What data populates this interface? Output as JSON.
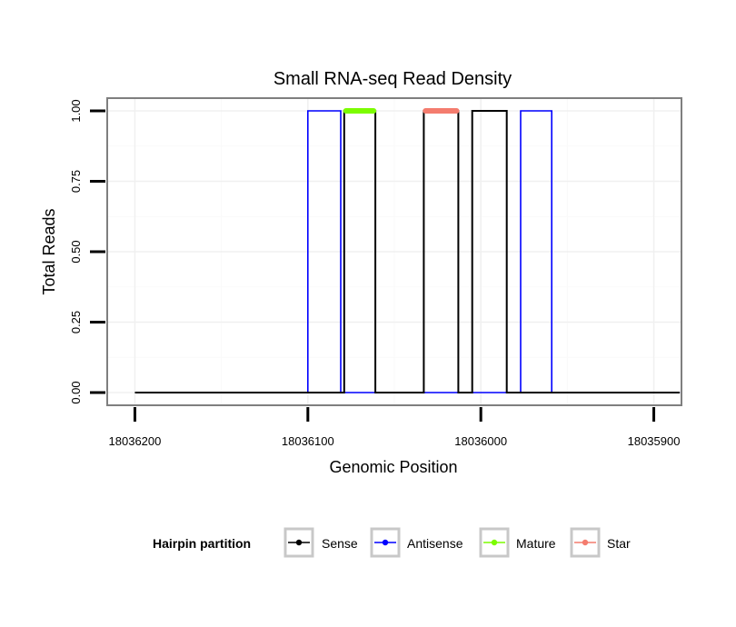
{
  "chart_data": {
    "type": "line",
    "title": "Small RNA-seq Read Density",
    "xlabel": "Genomic Position",
    "ylabel": "Total Reads",
    "xlim": [
      18036216,
      18035884
    ],
    "x_reversed": true,
    "ylim": [
      -0.045,
      1.045
    ],
    "x_ticks": [
      18036200,
      18036100,
      18036000,
      18035900
    ],
    "x_tick_labels": [
      "18036200",
      "18036100",
      "18036000",
      "18035900"
    ],
    "y_ticks": [
      0,
      0.25,
      0.5,
      0.75,
      1
    ],
    "y_tick_labels": [
      "0.00",
      "0.25",
      "0.50",
      "0.75",
      "1.00"
    ],
    "grid": true,
    "legend": {
      "title": "Hairpin partition",
      "position": "bottom",
      "entries": [
        "Sense",
        "Antisense",
        "Mature",
        "Star"
      ]
    },
    "series": [
      {
        "name": "Sense",
        "color": "#000000",
        "width": 2,
        "x": [
          18036200,
          18036079,
          18036079,
          18036061,
          18036061,
          18036033,
          18036033,
          18036013,
          18036013,
          18036005,
          18036005,
          18035985,
          18035985,
          18035885
        ],
        "y": [
          0,
          0,
          1,
          1,
          0,
          0,
          1,
          1,
          0,
          0,
          1,
          1,
          0,
          0
        ]
      },
      {
        "name": "Antisense",
        "color": "#0000ff",
        "width": 1.6,
        "x": [
          18036200,
          18036100,
          18036100,
          18036081,
          18036081,
          18035977,
          18035977,
          18035959,
          18035959,
          18035885
        ],
        "y": [
          0,
          0,
          1,
          1,
          0,
          0,
          1,
          1,
          0,
          0
        ]
      },
      {
        "name": "Mature",
        "color": "#7cfc00",
        "width": 6,
        "x": [
          18036078,
          18036062
        ],
        "y": [
          1,
          1
        ]
      },
      {
        "name": "Star",
        "color": "#f47c6e",
        "width": 6,
        "x": [
          18036032,
          18036014
        ],
        "y": [
          1,
          1
        ]
      }
    ]
  }
}
